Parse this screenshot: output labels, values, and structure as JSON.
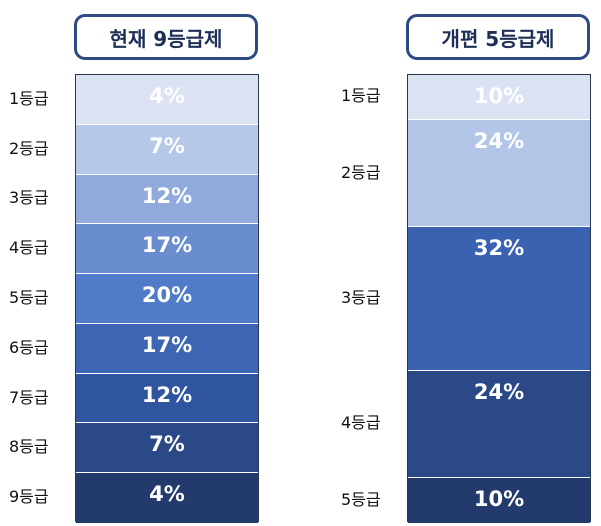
{
  "chart_data": [
    {
      "type": "bar",
      "title": "현재 9등급제",
      "categories": [
        "1등급",
        "2등급",
        "3등급",
        "4등급",
        "5등급",
        "6등급",
        "7등급",
        "8등급",
        "9등급"
      ],
      "values": [
        4,
        7,
        12,
        17,
        20,
        17,
        12,
        7,
        4
      ],
      "value_labels": [
        "4%",
        "7%",
        "12%",
        "17%",
        "20%",
        "17%",
        "12%",
        "7%",
        "4%"
      ],
      "colors": [
        "#dbe3f3",
        "#b6c8e8",
        "#8faadb",
        "#6a8dd0",
        "#4f7bc9",
        "#3c66b4",
        "#2f559e",
        "#2b4887",
        "#233a6d"
      ]
    },
    {
      "type": "bar",
      "title": "개편 5등급제",
      "categories": [
        "1등급",
        "2등급",
        "3등급",
        "4등급",
        "5등급"
      ],
      "values": [
        10,
        24,
        32,
        24,
        10
      ],
      "value_labels": [
        "10%",
        "24%",
        "32%",
        "24%",
        "10%"
      ],
      "colors": [
        "#dbe3f3",
        "#b4c6e7",
        "#3a62b0",
        "#2b4887",
        "#233a6d"
      ]
    }
  ]
}
